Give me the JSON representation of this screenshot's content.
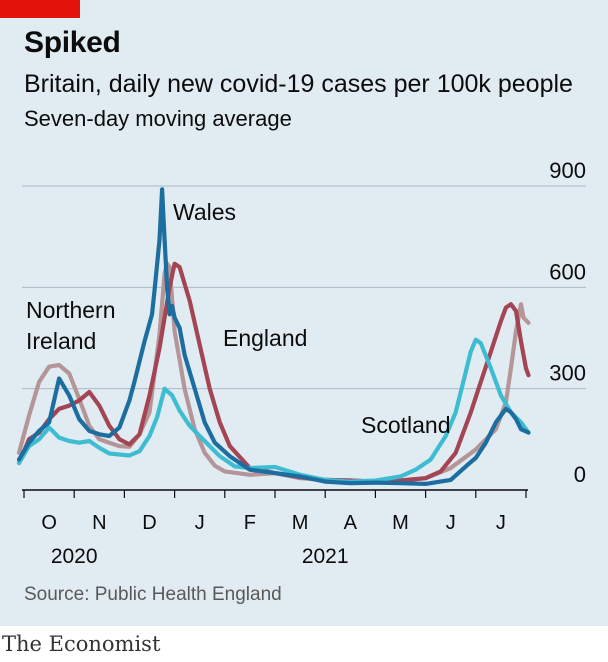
{
  "header": {
    "title": "Spiked",
    "subtitle": "Britain, daily new covid-19 cases per 100k people",
    "note": "Seven-day moving average"
  },
  "footer": {
    "source": "Source: Public Health England",
    "brand": "The Economist"
  },
  "colors": {
    "background": "#e1ecf2",
    "accent_bar": "#e3120b",
    "gridline": "#a9bbc6",
    "axis": "#0c0c0c"
  },
  "chart_data": {
    "type": "line",
    "title": "Spiked",
    "subtitle": "Britain, daily new covid-19 cases per 100k people",
    "note": "Seven-day moving average",
    "ylim": [
      0,
      900
    ],
    "yticks": [
      0,
      300,
      600,
      900
    ],
    "y_axis_side": "right",
    "grid": true,
    "x_month_labels": [
      "O",
      "N",
      "D",
      "J",
      "F",
      "M",
      "A",
      "M",
      "J",
      "J"
    ],
    "x_year_labels": [
      {
        "label": "2020",
        "month": 1
      },
      {
        "label": "2021",
        "month": 6
      }
    ],
    "legend": "direct labels on lines",
    "series": [
      {
        "name": "Northern Ireland",
        "color": "#b49598",
        "x": [
          -0.1,
          0.1,
          0.3,
          0.5,
          0.7,
          0.9,
          1.1,
          1.3,
          1.5,
          1.7,
          1.9,
          2.1,
          2.3,
          2.5,
          2.7,
          2.8,
          2.85,
          2.9,
          3.0,
          3.2,
          3.4,
          3.6,
          3.8,
          4.0,
          4.5,
          5.0,
          5.5,
          6.0,
          6.5,
          7.0,
          7.5,
          8.0,
          8.5,
          9.0,
          9.2,
          9.4,
          9.6,
          9.7,
          9.8,
          9.9,
          9.95,
          10.05
        ],
        "values": [
          110,
          220,
          320,
          365,
          370,
          345,
          270,
          190,
          150,
          140,
          130,
          128,
          165,
          230,
          460,
          640,
          670,
          660,
          470,
          300,
          180,
          110,
          72,
          55,
          45,
          50,
          35,
          30,
          28,
          25,
          28,
          35,
          65,
          120,
          150,
          180,
          260,
          360,
          470,
          550,
          510,
          495
        ]
      },
      {
        "name": "England",
        "color": "#a34552",
        "x": [
          -0.1,
          0.1,
          0.3,
          0.5,
          0.7,
          0.9,
          1.1,
          1.3,
          1.5,
          1.7,
          1.9,
          2.1,
          2.3,
          2.5,
          2.7,
          2.9,
          3.0,
          3.1,
          3.3,
          3.5,
          3.7,
          3.9,
          4.1,
          4.5,
          5.0,
          5.5,
          6.0,
          6.5,
          7.0,
          7.5,
          8.0,
          8.3,
          8.6,
          8.9,
          9.1,
          9.3,
          9.5,
          9.6,
          9.7,
          9.8,
          9.9,
          10.0,
          10.05
        ],
        "values": [
          80,
          150,
          170,
          210,
          240,
          250,
          265,
          290,
          250,
          190,
          150,
          135,
          165,
          280,
          420,
          600,
          670,
          660,
          560,
          430,
          300,
          200,
          130,
          65,
          50,
          38,
          30,
          28,
          25,
          28,
          35,
          55,
          110,
          230,
          320,
          410,
          500,
          540,
          550,
          530,
          440,
          360,
          340
        ]
      },
      {
        "name": "Scotland",
        "color": "#3ebcd2",
        "x": [
          -0.1,
          0.1,
          0.3,
          0.5,
          0.7,
          0.9,
          1.1,
          1.3,
          1.5,
          1.7,
          1.9,
          2.1,
          2.3,
          2.5,
          2.65,
          2.8,
          2.95,
          3.1,
          3.3,
          3.5,
          3.7,
          3.9,
          4.2,
          4.5,
          5.0,
          5.5,
          6.0,
          6.5,
          7.0,
          7.5,
          7.8,
          8.1,
          8.4,
          8.6,
          8.75,
          8.9,
          9.0,
          9.1,
          9.3,
          9.5,
          9.7,
          9.9,
          10.05
        ],
        "values": [
          80,
          130,
          150,
          185,
          155,
          145,
          140,
          145,
          125,
          108,
          105,
          102,
          115,
          160,
          215,
          300,
          280,
          235,
          190,
          160,
          130,
          100,
          70,
          65,
          68,
          45,
          30,
          25,
          28,
          40,
          60,
          90,
          160,
          230,
          320,
          410,
          445,
          435,
          360,
          280,
          230,
          200,
          170
        ]
      },
      {
        "name": "Wales",
        "color": "#1d6ea0",
        "x": [
          -0.1,
          0.1,
          0.3,
          0.5,
          0.7,
          0.9,
          1.1,
          1.3,
          1.5,
          1.7,
          1.9,
          2.0,
          2.1,
          2.2,
          2.4,
          2.55,
          2.6,
          2.7,
          2.75,
          2.8,
          2.85,
          2.9,
          2.95,
          3.0,
          3.1,
          3.2,
          3.4,
          3.6,
          3.8,
          4.1,
          4.5,
          5.0,
          5.5,
          6.0,
          6.5,
          7.0,
          7.5,
          8.0,
          8.5,
          8.8,
          9.0,
          9.2,
          9.4,
          9.6,
          9.7,
          9.8,
          9.9,
          10.05
        ],
        "values": [
          90,
          140,
          175,
          200,
          330,
          280,
          210,
          175,
          165,
          160,
          185,
          225,
          265,
          320,
          440,
          520,
          590,
          740,
          890,
          740,
          600,
          520,
          545,
          510,
          480,
          400,
          300,
          200,
          140,
          100,
          60,
          50,
          40,
          25,
          20,
          22,
          20,
          18,
          30,
          70,
          95,
          140,
          200,
          240,
          230,
          210,
          180,
          170
        ]
      }
    ],
    "annotations": [
      {
        "label": "Wales",
        "lines": [
          "Wales"
        ]
      },
      {
        "label": "Northern Ireland",
        "lines": [
          "Northern",
          "Ireland"
        ]
      },
      {
        "label": "England",
        "lines": [
          "England"
        ]
      },
      {
        "label": "Scotland",
        "lines": [
          "Scotland"
        ]
      }
    ]
  }
}
